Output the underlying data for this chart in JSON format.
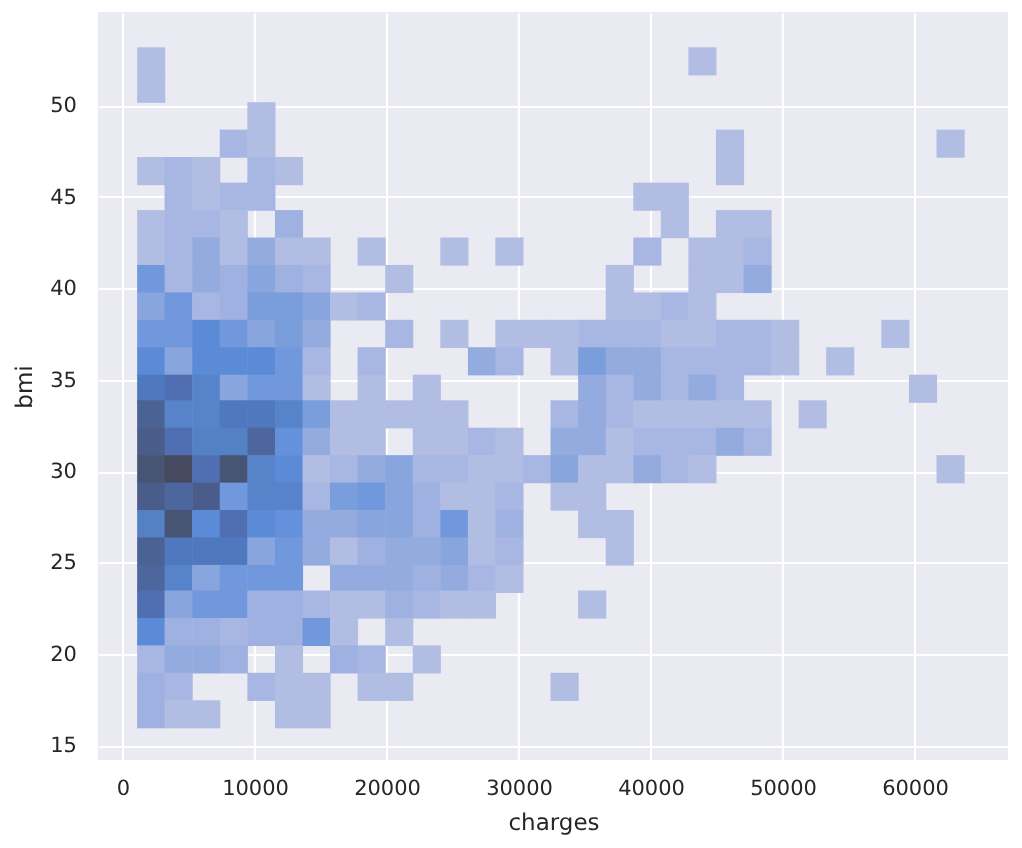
{
  "chart_data": {
    "type": "scatter",
    "xlabel": "charges",
    "ylabel": "bmi",
    "marker": "square",
    "series": [
      {
        "x": [
          2170,
          43930
        ],
        "values": [
          52.4,
          52.4
        ],
        "colors": [
          "#b1bde2",
          "#b1bde2"
        ]
      },
      {
        "x": [
          2170
        ],
        "values": [
          50.9
        ],
        "colors": [
          "#b1bde2"
        ]
      },
      {
        "x": [
          10520
        ],
        "values": [
          49.4
        ],
        "colors": [
          "#b1bde2"
        ]
      },
      {
        "x": [
          8430,
          10520,
          46020,
          62730
        ],
        "values": [
          47.9,
          47.9,
          47.9,
          47.9
        ],
        "colors": [
          "#a8b6e3",
          "#b1bde2",
          "#b1bde2",
          "#b1bde2"
        ]
      },
      {
        "x": [
          2170,
          4250,
          6340,
          10520,
          12610,
          46020
        ],
        "values": [
          46.4,
          46.4,
          46.4,
          46.4,
          46.4,
          46.4
        ],
        "colors": [
          "#b1bde2",
          "#a8b6e3",
          "#b1bde2",
          "#a8b6e3",
          "#b1bde2",
          "#b1bde2"
        ]
      },
      {
        "x": [
          4250,
          6340,
          8430,
          10520,
          39760,
          41840
        ],
        "values": [
          45.0,
          45.0,
          45.0,
          45.0,
          45.0,
          45.0
        ],
        "colors": [
          "#a8b6e3",
          "#b1bde2",
          "#a8b6e3",
          "#a8b6e3",
          "#b1bde2",
          "#b1bde2"
        ]
      },
      {
        "x": [
          2170,
          4250,
          6340,
          8430,
          12610,
          41840,
          46020,
          48110
        ],
        "values": [
          43.5,
          43.5,
          43.5,
          43.5,
          43.5,
          43.5,
          43.5,
          43.5
        ],
        "colors": [
          "#b1bde2",
          "#a8b6e3",
          "#a8b6e3",
          "#b1bde2",
          "#9fb1e0",
          "#b1bde2",
          "#b1bde2",
          "#b1bde2"
        ]
      },
      {
        "x": [
          2170,
          4250,
          6340,
          8430,
          10520,
          12610,
          14700,
          18870,
          25140,
          29310,
          39760,
          43930,
          46020,
          48110
        ],
        "values": [
          42.0,
          42.0,
          42.0,
          42.0,
          42.0,
          42.0,
          42.0,
          42.0,
          42.0,
          42.0,
          42.0,
          42.0,
          42.0,
          42.0
        ],
        "colors": [
          "#b1bde2",
          "#a8b6e3",
          "#93abdf",
          "#b1bde2",
          "#93abdf",
          "#b1bde2",
          "#b1bde2",
          "#b1bde2",
          "#b1bde2",
          "#b1bde2",
          "#a8b6e3",
          "#b1bde2",
          "#b1bde2",
          "#a8b6e3"
        ]
      },
      {
        "x": [
          2170,
          4250,
          6340,
          8430,
          10520,
          12610,
          14700,
          20960,
          37670,
          43930,
          46020,
          48110
        ],
        "values": [
          40.5,
          40.5,
          40.5,
          40.5,
          40.5,
          40.5,
          40.5,
          40.5,
          40.5,
          40.5,
          40.5,
          40.5
        ],
        "colors": [
          "#7198dc",
          "#a8b6e3",
          "#93abdf",
          "#9fb1e0",
          "#88a5dd",
          "#9fb1e0",
          "#a8b6e3",
          "#b1bde2",
          "#b1bde2",
          "#b1bde2",
          "#b1bde2",
          "#93abdf"
        ]
      },
      {
        "x": [
          2170,
          4250,
          6340,
          8430,
          10520,
          12610,
          14700,
          16780,
          18870,
          37670,
          39760,
          41840,
          43930
        ],
        "values": [
          39.0,
          39.0,
          39.0,
          39.0,
          39.0,
          39.0,
          39.0,
          39.0,
          39.0,
          39.0,
          39.0,
          39.0,
          39.0
        ],
        "colors": [
          "#88a5dd",
          "#7198dc",
          "#a8b6e3",
          "#9fb1e0",
          "#7a9ddb",
          "#7a9ddb",
          "#88a5dd",
          "#b1bde2",
          "#a8b6e3",
          "#b1bde2",
          "#b1bde2",
          "#a8b6e3",
          "#b1bde2"
        ]
      },
      {
        "x": [
          2170,
          4250,
          6340,
          8430,
          10520,
          12610,
          14700,
          20960,
          25140,
          29310,
          31400,
          33490,
          35580,
          37670,
          39760,
          41840,
          43930,
          46020,
          48110,
          50200,
          58550
        ],
        "values": [
          37.5,
          37.5,
          37.5,
          37.5,
          37.5,
          37.5,
          37.5,
          37.5,
          37.5,
          37.5,
          37.5,
          37.5,
          37.5,
          37.5,
          37.5,
          37.5,
          37.5,
          37.5,
          37.5,
          37.5,
          37.5
        ],
        "colors": [
          "#7198dc",
          "#7198dc",
          "#5b8bd6",
          "#7198dc",
          "#88a5dd",
          "#7a9ddb",
          "#93abdf",
          "#a8b6e3",
          "#b1bde2",
          "#b1bde2",
          "#b1bde2",
          "#b1bde2",
          "#a8b6e3",
          "#a8b6e3",
          "#a8b6e3",
          "#b1bde2",
          "#b1bde2",
          "#a8b6e3",
          "#a8b6e3",
          "#b1bde2",
          "#b1bde2"
        ]
      },
      {
        "x": [
          2170,
          4250,
          6340,
          8430,
          10520,
          12610,
          14700,
          18870,
          27230,
          29310,
          33490,
          35580,
          37670,
          39760,
          41840,
          43930,
          46020,
          48110,
          50200,
          54370
        ],
        "values": [
          36.0,
          36.0,
          36.0,
          36.0,
          36.0,
          36.0,
          36.0,
          36.0,
          36.0,
          36.0,
          36.0,
          36.0,
          36.0,
          36.0,
          36.0,
          36.0,
          36.0,
          36.0,
          36.0,
          36.0
        ],
        "colors": [
          "#5b8bd6",
          "#88a5dd",
          "#5b8bd6",
          "#5b8bd6",
          "#5b8bd6",
          "#7198dc",
          "#a8b6e3",
          "#a8b6e3",
          "#93abdf",
          "#a8b6e3",
          "#b1bde2",
          "#7a9ddb",
          "#93abdf",
          "#93abdf",
          "#a8b6e3",
          "#a8b6e3",
          "#a8b6e3",
          "#a8b6e3",
          "#b1bde2",
          "#b1bde2"
        ]
      },
      {
        "x": [
          2170,
          4250,
          6340,
          8430,
          10520,
          12610,
          14700,
          18870,
          23050,
          35580,
          37670,
          39760,
          41840,
          43930,
          46020,
          60640
        ],
        "values": [
          34.5,
          34.5,
          34.5,
          34.5,
          34.5,
          34.5,
          34.5,
          34.5,
          34.5,
          34.5,
          34.5,
          34.5,
          34.5,
          34.5,
          34.5,
          34.5
        ],
        "colors": [
          "#4f78be",
          "#4f6fb2",
          "#5683ca",
          "#88a5dd",
          "#7198dc",
          "#7198dc",
          "#b1bde2",
          "#b1bde2",
          "#b1bde2",
          "#93abdf",
          "#a8b6e3",
          "#93abdf",
          "#a8b6e3",
          "#93abdf",
          "#a8b6e3",
          "#b1bde2"
        ]
      },
      {
        "x": [
          2170,
          4250,
          6340,
          8430,
          10520,
          12610,
          14700,
          16780,
          18870,
          20960,
          23050,
          25140,
          33490,
          35580,
          37670,
          39760,
          41840,
          43930,
          46020,
          48110,
          52280
        ],
        "values": [
          33.1,
          33.1,
          33.1,
          33.1,
          33.1,
          33.1,
          33.1,
          33.1,
          33.1,
          33.1,
          33.1,
          33.1,
          33.1,
          33.1,
          33.1,
          33.1,
          33.1,
          33.1,
          33.1,
          33.1,
          33.1
        ],
        "colors": [
          "#4b6295",
          "#5683ca",
          "#5683ca",
          "#4f78be",
          "#4f78be",
          "#5683ca",
          "#7a9ddb",
          "#b1bde2",
          "#b1bde2",
          "#b1bde2",
          "#b1bde2",
          "#b1bde2",
          "#a8b6e3",
          "#93abdf",
          "#a8b6e3",
          "#b1bde2",
          "#b1bde2",
          "#b1bde2",
          "#b1bde2",
          "#b1bde2",
          "#b1bde2"
        ]
      },
      {
        "x": [
          2170,
          4250,
          6340,
          8430,
          10520,
          12610,
          14700,
          16780,
          18870,
          23050,
          25140,
          27230,
          29310,
          33490,
          35580,
          37670,
          39760,
          41840,
          43930,
          46020,
          48110
        ],
        "values": [
          31.6,
          31.6,
          31.6,
          31.6,
          31.6,
          31.6,
          31.6,
          31.6,
          31.6,
          31.6,
          31.6,
          31.6,
          31.6,
          31.6,
          31.6,
          31.6,
          31.6,
          31.6,
          31.6,
          31.6,
          31.6
        ],
        "colors": [
          "#4a5c8a",
          "#4f6fb2",
          "#5381c4",
          "#5381c4",
          "#4e669e",
          "#6590db",
          "#93abdf",
          "#b1bde2",
          "#b1bde2",
          "#b1bde2",
          "#b1bde2",
          "#a8b6e3",
          "#b1bde2",
          "#93abdf",
          "#93abdf",
          "#b1bde2",
          "#a8b6e3",
          "#a8b6e3",
          "#a8b6e3",
          "#93abdf",
          "#a8b6e3"
        ]
      },
      {
        "x": [
          2170,
          4250,
          6340,
          8430,
          10520,
          12610,
          14700,
          16780,
          18870,
          20960,
          23050,
          25140,
          27230,
          29310,
          31400,
          33490,
          35580,
          37670,
          39760,
          41840,
          43930,
          62730
        ],
        "values": [
          30.1,
          30.1,
          30.1,
          30.1,
          30.1,
          30.1,
          30.1,
          30.1,
          30.1,
          30.1,
          30.1,
          30.1,
          30.1,
          30.1,
          30.1,
          30.1,
          30.1,
          30.1,
          30.1,
          30.1,
          30.1,
          30.1
        ],
        "colors": [
          "#485473",
          "#454a60",
          "#4f6fb2",
          "#485473",
          "#5683ca",
          "#5b8bd6",
          "#b1bde2",
          "#a8b6e3",
          "#93abdf",
          "#88a5dd",
          "#a8b6e3",
          "#a8b6e3",
          "#b1bde2",
          "#b1bde2",
          "#a8b6e3",
          "#88a5dd",
          "#b1bde2",
          "#b1bde2",
          "#93abdf",
          "#a8b6e3",
          "#b1bde2",
          "#b1bde2"
        ]
      },
      {
        "x": [
          2170,
          4250,
          6340,
          8430,
          10520,
          12610,
          14700,
          16780,
          18870,
          20960,
          23050,
          25140,
          27230,
          29310,
          33490,
          35580
        ],
        "values": [
          28.6,
          28.6,
          28.6,
          28.6,
          28.6,
          28.6,
          28.6,
          28.6,
          28.6,
          28.6,
          28.6,
          28.6,
          28.6,
          28.6,
          28.6,
          28.6
        ],
        "colors": [
          "#4a5c8a",
          "#4e669e",
          "#4a5c8a",
          "#7198dc",
          "#5683ca",
          "#5683ca",
          "#a8b6e3",
          "#7a9ddb",
          "#7198dc",
          "#88a5dd",
          "#9fb1e0",
          "#b1bde2",
          "#b1bde2",
          "#a8b6e3",
          "#b1bde2",
          "#b1bde2"
        ]
      },
      {
        "x": [
          2170,
          4250,
          6340,
          8430,
          10520,
          12610,
          14700,
          16780,
          18870,
          20960,
          23050,
          25140,
          27230,
          29310,
          35580,
          37670
        ],
        "values": [
          27.1,
          27.1,
          27.1,
          27.1,
          27.1,
          27.1,
          27.1,
          27.1,
          27.1,
          27.1,
          27.1,
          27.1,
          27.1,
          27.1,
          27.1,
          27.1
        ],
        "colors": [
          "#5381c4",
          "#485473",
          "#5b8bd6",
          "#4f6fb2",
          "#5b8bd6",
          "#6590db",
          "#93abdf",
          "#93abdf",
          "#88a5dd",
          "#88a5dd",
          "#9fb1e0",
          "#7198dc",
          "#b1bde2",
          "#9fb1e0",
          "#b1bde2",
          "#b1bde2"
        ]
      },
      {
        "x": [
          2170,
          4250,
          6340,
          8430,
          10520,
          12610,
          14700,
          16780,
          18870,
          20960,
          23050,
          25140,
          27230,
          29310,
          37670
        ],
        "values": [
          25.6,
          25.6,
          25.6,
          25.6,
          25.6,
          25.6,
          25.6,
          25.6,
          25.6,
          25.6,
          25.6,
          25.6,
          25.6,
          25.6,
          25.6
        ],
        "colors": [
          "#4b6295",
          "#4f78be",
          "#4f78be",
          "#4f78be",
          "#88a5dd",
          "#7198dc",
          "#93abdf",
          "#b1bde2",
          "#9fb1e0",
          "#93abdf",
          "#93abdf",
          "#88a5dd",
          "#b1bde2",
          "#a8b6e3",
          "#b1bde2"
        ]
      },
      {
        "x": [
          2170,
          4250,
          6340,
          8430,
          10520,
          12610,
          16780,
          18870,
          20960,
          23050,
          25140,
          27230,
          29310
        ],
        "values": [
          24.1,
          24.1,
          24.1,
          24.1,
          24.1,
          24.1,
          24.1,
          24.1,
          24.1,
          24.1,
          24.1,
          24.1,
          24.1
        ],
        "colors": [
          "#4e669e",
          "#5683ca",
          "#88a5dd",
          "#7198dc",
          "#7198dc",
          "#7198dc",
          "#93abdf",
          "#93abdf",
          "#93abdf",
          "#9fb1e0",
          "#93abdf",
          "#a8b6e3",
          "#b1bde2"
        ]
      },
      {
        "x": [
          2170,
          4250,
          6340,
          8430,
          10520,
          12610,
          14700,
          16780,
          18870,
          20960,
          23050,
          25140,
          27230,
          35580
        ],
        "values": [
          22.7,
          22.7,
          22.7,
          22.7,
          22.7,
          22.7,
          22.7,
          22.7,
          22.7,
          22.7,
          22.7,
          22.7,
          22.7,
          22.7
        ],
        "colors": [
          "#4f6fb2",
          "#88a5dd",
          "#7198dc",
          "#7198dc",
          "#9fb1e0",
          "#9fb1e0",
          "#a8b6e3",
          "#b1bde2",
          "#b1bde2",
          "#9fb1e0",
          "#a8b6e3",
          "#b1bde2",
          "#b1bde2",
          "#b1bde2"
        ]
      },
      {
        "x": [
          2170,
          4250,
          6340,
          8430,
          10520,
          12610,
          14700,
          16780,
          20960
        ],
        "values": [
          21.2,
          21.2,
          21.2,
          21.2,
          21.2,
          21.2,
          21.2,
          21.2,
          21.2
        ],
        "colors": [
          "#5b8bd6",
          "#9fb1e0",
          "#9fb1e0",
          "#a8b6e3",
          "#9fb1e0",
          "#9fb1e0",
          "#7198dc",
          "#b1bde2",
          "#b1bde2"
        ]
      },
      {
        "x": [
          2170,
          4250,
          6340,
          8430,
          12610,
          16780,
          18870,
          23050
        ],
        "values": [
          19.7,
          19.7,
          19.7,
          19.7,
          19.7,
          19.7,
          19.7,
          19.7
        ],
        "colors": [
          "#a8b6e3",
          "#93abdf",
          "#93abdf",
          "#9fb1e0",
          "#b1bde2",
          "#9fb1e0",
          "#a8b6e3",
          "#b1bde2"
        ]
      },
      {
        "x": [
          2170,
          4250,
          10520,
          12610,
          14700,
          18870,
          20960,
          33490
        ],
        "values": [
          18.2,
          18.2,
          18.2,
          18.2,
          18.2,
          18.2,
          18.2,
          18.2
        ],
        "colors": [
          "#9fb1e0",
          "#a8b6e3",
          "#a8b6e3",
          "#b1bde2",
          "#b1bde2",
          "#b1bde2",
          "#b1bde2",
          "#b1bde2"
        ]
      },
      {
        "x": [
          2170,
          4250,
          6340,
          12610,
          14700
        ],
        "values": [
          16.7,
          16.7,
          16.7,
          16.7,
          16.7
        ],
        "colors": [
          "#9fb1e0",
          "#b1bde2",
          "#b1bde2",
          "#b1bde2",
          "#b1bde2"
        ]
      }
    ],
    "xlim": [
      -1860,
      67080
    ],
    "ylim": [
      14.2,
      55.1
    ],
    "xticks": [
      0,
      10000,
      20000,
      30000,
      40000,
      50000,
      60000
    ],
    "yticks": [
      15,
      20,
      25,
      30,
      35,
      40,
      45,
      50
    ],
    "grid": true
  }
}
